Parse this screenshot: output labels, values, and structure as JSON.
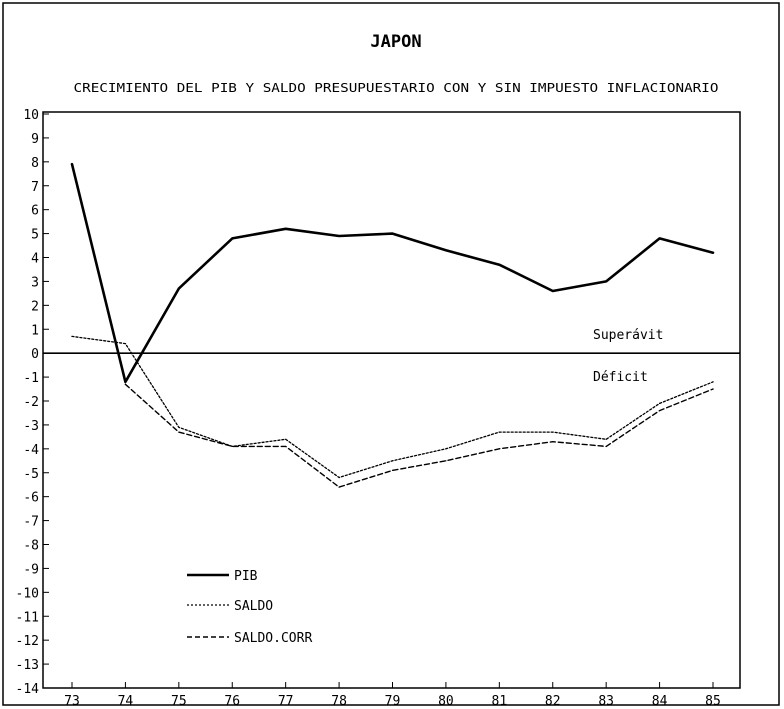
{
  "chart_data": {
    "type": "line",
    "title": "JAPON",
    "subtitle": "CRECIMIENTO DEL PIB Y SALDO PRESUPUESTARIO CON Y SIN IMPUESTO INFLACIONARIO",
    "xlabel": "",
    "ylabel": "",
    "categories": [
      "73",
      "74",
      "75",
      "76",
      "77",
      "78",
      "79",
      "80",
      "81",
      "82",
      "83",
      "84",
      "85"
    ],
    "x_tick_labels": [
      "73",
      "74",
      "75",
      "76",
      "77",
      "78",
      "79",
      "80",
      "81",
      "82",
      "83",
      "84",
      "85"
    ],
    "y_tick_labels": [
      "10",
      "9",
      "8",
      "7",
      "6",
      "5",
      "4",
      "3",
      "2",
      "1",
      "0",
      "-1",
      "-2",
      "-3",
      "-4",
      "-5",
      "-6",
      "-7",
      "-8",
      "-9",
      "-10",
      "-11",
      "-12",
      "-13",
      "-14"
    ],
    "ylim": [
      -14,
      10
    ],
    "grid": false,
    "legend_position": "bottom-left",
    "zero_line": true,
    "annotations": {
      "above_zero": "Superávit",
      "below_zero": "Déficit"
    },
    "series": [
      {
        "name": "PIB",
        "style": "solid-thick",
        "points": [
          [
            73,
            7.9
          ],
          [
            74,
            -1.2
          ],
          [
            75,
            2.7
          ],
          [
            76,
            4.8
          ],
          [
            77,
            5.2
          ],
          [
            78,
            4.9
          ],
          [
            79,
            5.0
          ],
          [
            80,
            4.3
          ],
          [
            81,
            3.7
          ],
          [
            82,
            2.6
          ],
          [
            83,
            3.0
          ],
          [
            84,
            4.8
          ],
          [
            85,
            4.2
          ]
        ]
      },
      {
        "name": "SALDO",
        "style": "dotted",
        "points": [
          [
            73,
            0.7
          ],
          [
            74,
            0.4
          ],
          [
            75,
            -3.1
          ],
          [
            76,
            -3.9
          ],
          [
            77,
            -3.6
          ],
          [
            78,
            -5.2
          ],
          [
            79,
            -4.5
          ],
          [
            80,
            -4.0
          ],
          [
            81,
            -3.3
          ],
          [
            82,
            -3.3
          ],
          [
            83,
            -3.6
          ],
          [
            84,
            -2.1
          ],
          [
            85,
            -1.2
          ]
        ]
      },
      {
        "name": "SALDO.CORR",
        "style": "dashed",
        "points": [
          [
            74,
            -1.3
          ],
          [
            75,
            -3.3
          ],
          [
            76,
            -3.9
          ],
          [
            77,
            -3.9
          ],
          [
            78,
            -5.6
          ],
          [
            79,
            -4.9
          ],
          [
            80,
            -4.5
          ],
          [
            81,
            -4.0
          ],
          [
            82,
            -3.7
          ],
          [
            83,
            -3.9
          ],
          [
            84,
            -2.4
          ],
          [
            85,
            -1.5
          ]
        ]
      }
    ]
  }
}
